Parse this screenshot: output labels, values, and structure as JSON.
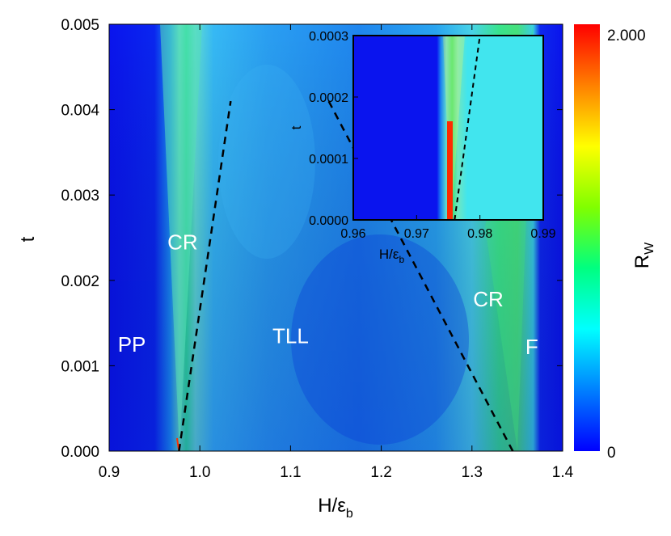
{
  "chart_data": {
    "type": "heatmap",
    "title": "",
    "xlabel": "H/ε",
    "xlabel_sub": "b",
    "ylabel": "t",
    "xlim": [
      0.9,
      1.4
    ],
    "ylim": [
      0.0,
      0.005
    ],
    "x_ticks": [
      "0.9",
      "1.0",
      "1.1",
      "1.2",
      "1.3",
      "1.4"
    ],
    "y_ticks": [
      "0.000",
      "0.001",
      "0.002",
      "0.003",
      "0.004",
      "0.005"
    ],
    "colorbar": {
      "label": "R",
      "label_sub": "W",
      "min": 0,
      "max": 2.0,
      "min_label": "0",
      "max_label": "2.000",
      "colors": [
        "#0000ff",
        "#0080ff",
        "#00ffff",
        "#00ff80",
        "#80ff00",
        "#ffff00",
        "#ff8000",
        "#ff0000"
      ]
    },
    "regions": [
      {
        "label": "PP",
        "x": 0.925,
        "y": 0.00125
      },
      {
        "label": "CR",
        "x": 0.981,
        "y": 0.00245
      },
      {
        "label": "TLL",
        "x": 1.1,
        "y": 0.00135
      },
      {
        "label": "CR",
        "x": 1.318,
        "y": 0.00178
      },
      {
        "label": "F",
        "x": 1.366,
        "y": 0.00122
      }
    ],
    "dashed_boundaries": [
      {
        "x": [
          0.977,
          1.034
        ],
        "y": [
          0.0,
          0.0041
        ]
      },
      {
        "x": [
          1.345,
          1.142
        ],
        "y": [
          0.0,
          0.0041
        ]
      }
    ],
    "critical_points": [
      0.977,
      1.345
    ],
    "inset": {
      "xlabel": "H/ε",
      "xlabel_sub": "b",
      "ylabel": "t",
      "xlim": [
        0.96,
        0.99
      ],
      "ylim": [
        0.0,
        0.0003
      ],
      "x_ticks": [
        "0.96",
        "0.97",
        "0.98",
        "0.99"
      ],
      "y_ticks": [
        "0.0000",
        "0.0001",
        "0.0002",
        "0.0003"
      ],
      "dashed_boundary": {
        "x": [
          0.976,
          0.98
        ],
        "y": [
          0.0,
          0.0003
        ]
      },
      "critical_x": 0.9755
    }
  }
}
